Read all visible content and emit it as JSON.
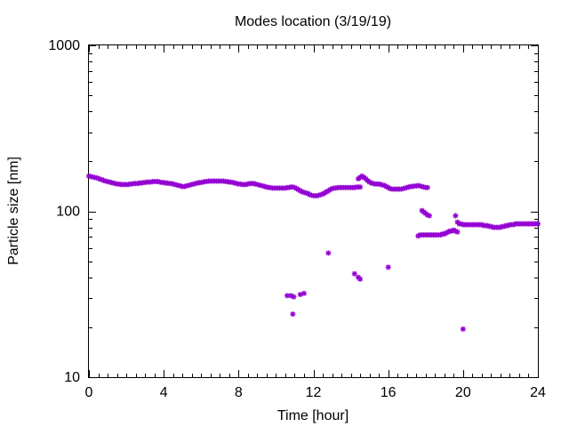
{
  "chart_data": {
    "type": "scatter",
    "title": "Modes location (3/19/19)",
    "xlabel": "Time [hour]",
    "ylabel": "Particle size [nm]",
    "xlim": [
      0,
      24
    ],
    "ylim": [
      10,
      1000
    ],
    "y_scale": "log",
    "grid": false,
    "legend": "none",
    "marker_color": "#9400d3",
    "x_ticks": [
      {
        "value": 0,
        "label": "0"
      },
      {
        "value": 4,
        "label": "4"
      },
      {
        "value": 8,
        "label": "8"
      },
      {
        "value": 12,
        "label": "12"
      },
      {
        "value": 16,
        "label": "16"
      },
      {
        "value": 20,
        "label": "20"
      },
      {
        "value": 24,
        "label": "24"
      }
    ],
    "y_ticks": [
      {
        "value": 10,
        "label": "10"
      },
      {
        "value": 100,
        "label": "100"
      },
      {
        "value": 1000,
        "label": "1000"
      }
    ],
    "series": [
      {
        "points": [
          [
            0.0,
            163
          ],
          [
            0.1,
            162
          ],
          [
            0.2,
            161
          ],
          [
            0.3,
            160
          ],
          [
            0.4,
            159
          ],
          [
            0.5,
            158
          ],
          [
            0.6,
            156
          ],
          [
            0.7,
            155
          ],
          [
            0.8,
            153
          ],
          [
            0.9,
            152
          ],
          [
            1.0,
            151
          ],
          [
            1.1,
            150
          ],
          [
            1.2,
            149
          ],
          [
            1.3,
            148
          ],
          [
            1.4,
            147
          ],
          [
            1.5,
            146
          ],
          [
            1.6,
            146
          ],
          [
            1.7,
            145
          ],
          [
            1.8,
            145
          ],
          [
            1.9,
            145
          ],
          [
            2.0,
            145
          ],
          [
            2.1,
            145
          ],
          [
            2.2,
            146
          ],
          [
            2.3,
            146
          ],
          [
            2.4,
            147
          ],
          [
            2.5,
            147
          ],
          [
            2.6,
            147
          ],
          [
            2.7,
            148
          ],
          [
            2.8,
            148
          ],
          [
            2.9,
            149
          ],
          [
            3.0,
            149
          ],
          [
            3.1,
            150
          ],
          [
            3.2,
            150
          ],
          [
            3.3,
            150
          ],
          [
            3.4,
            151
          ],
          [
            3.5,
            151
          ],
          [
            3.6,
            151
          ],
          [
            3.7,
            151
          ],
          [
            3.8,
            150
          ],
          [
            3.9,
            149
          ],
          [
            4.0,
            149
          ],
          [
            4.1,
            148
          ],
          [
            4.2,
            148
          ],
          [
            4.3,
            147
          ],
          [
            4.4,
            147
          ],
          [
            4.5,
            146
          ],
          [
            4.6,
            145
          ],
          [
            4.7,
            144
          ],
          [
            4.8,
            143
          ],
          [
            4.9,
            142
          ],
          [
            5.0,
            141
          ],
          [
            5.1,
            141
          ],
          [
            5.2,
            142
          ],
          [
            5.3,
            143
          ],
          [
            5.4,
            144
          ],
          [
            5.5,
            145
          ],
          [
            5.6,
            146
          ],
          [
            5.7,
            147
          ],
          [
            5.8,
            148
          ],
          [
            5.9,
            149
          ],
          [
            6.0,
            149
          ],
          [
            6.1,
            150
          ],
          [
            6.2,
            151
          ],
          [
            6.3,
            151
          ],
          [
            6.4,
            152
          ],
          [
            6.5,
            152
          ],
          [
            6.6,
            152
          ],
          [
            6.7,
            152
          ],
          [
            6.8,
            152
          ],
          [
            6.9,
            152
          ],
          [
            7.0,
            152
          ],
          [
            7.1,
            152
          ],
          [
            7.2,
            152
          ],
          [
            7.3,
            151
          ],
          [
            7.4,
            151
          ],
          [
            7.5,
            150
          ],
          [
            7.6,
            150
          ],
          [
            7.7,
            149
          ],
          [
            7.8,
            148
          ],
          [
            7.9,
            147
          ],
          [
            8.0,
            146
          ],
          [
            8.1,
            146
          ],
          [
            8.2,
            145
          ],
          [
            8.3,
            145
          ],
          [
            8.4,
            145
          ],
          [
            8.5,
            146
          ],
          [
            8.6,
            147
          ],
          [
            8.7,
            147
          ],
          [
            8.8,
            147
          ],
          [
            8.9,
            146
          ],
          [
            9.0,
            145
          ],
          [
            9.1,
            144
          ],
          [
            9.2,
            143
          ],
          [
            9.3,
            142
          ],
          [
            9.4,
            141
          ],
          [
            9.5,
            140
          ],
          [
            9.6,
            139
          ],
          [
            9.7,
            139
          ],
          [
            9.8,
            138
          ],
          [
            9.9,
            138
          ],
          [
            10.0,
            138
          ],
          [
            10.1,
            138
          ],
          [
            10.2,
            138
          ],
          [
            10.3,
            138
          ],
          [
            10.4,
            138
          ],
          [
            10.5,
            138
          ],
          [
            10.6,
            139
          ],
          [
            10.7,
            139
          ],
          [
            10.8,
            140
          ],
          [
            10.9,
            140
          ],
          [
            11.0,
            139
          ],
          [
            11.1,
            137
          ],
          [
            11.2,
            135
          ],
          [
            11.3,
            133
          ],
          [
            11.4,
            131
          ],
          [
            11.5,
            130
          ],
          [
            11.6,
            129
          ],
          [
            11.7,
            128
          ],
          [
            11.8,
            126
          ],
          [
            11.9,
            125
          ],
          [
            12.0,
            124
          ],
          [
            12.1,
            124
          ],
          [
            12.2,
            124
          ],
          [
            12.3,
            125
          ],
          [
            12.4,
            126
          ],
          [
            12.5,
            127
          ],
          [
            12.6,
            129
          ],
          [
            12.7,
            131
          ],
          [
            12.8,
            133
          ],
          [
            12.9,
            135
          ],
          [
            13.0,
            137
          ],
          [
            13.1,
            138
          ],
          [
            13.2,
            138
          ],
          [
            13.3,
            139
          ],
          [
            13.4,
            139
          ],
          [
            13.5,
            139
          ],
          [
            13.6,
            139
          ],
          [
            13.7,
            139
          ],
          [
            13.8,
            139
          ],
          [
            13.9,
            139
          ],
          [
            14.0,
            139
          ],
          [
            14.1,
            139
          ],
          [
            14.2,
            139
          ],
          [
            14.3,
            140
          ],
          [
            14.4,
            140
          ],
          [
            14.5,
            140
          ],
          [
            14.4,
            157
          ],
          [
            14.5,
            160
          ],
          [
            14.6,
            163
          ],
          [
            14.7,
            160
          ],
          [
            14.8,
            157
          ],
          [
            14.9,
            153
          ],
          [
            15.0,
            150
          ],
          [
            15.1,
            148
          ],
          [
            15.2,
            147
          ],
          [
            15.3,
            146
          ],
          [
            15.4,
            146
          ],
          [
            15.5,
            146
          ],
          [
            15.6,
            145
          ],
          [
            15.7,
            144
          ],
          [
            15.8,
            143
          ],
          [
            15.9,
            141
          ],
          [
            16.0,
            139
          ],
          [
            16.1,
            137
          ],
          [
            16.2,
            136
          ],
          [
            16.3,
            136
          ],
          [
            16.4,
            136
          ],
          [
            16.5,
            136
          ],
          [
            16.6,
            136
          ],
          [
            16.7,
            136
          ],
          [
            16.8,
            137
          ],
          [
            16.9,
            138
          ],
          [
            17.0,
            139
          ],
          [
            17.1,
            140
          ],
          [
            17.2,
            141
          ],
          [
            17.3,
            141
          ],
          [
            17.4,
            142
          ],
          [
            17.5,
            142
          ],
          [
            17.6,
            143
          ],
          [
            17.7,
            142
          ],
          [
            17.8,
            141
          ],
          [
            17.9,
            140
          ],
          [
            18.0,
            139
          ],
          [
            18.1,
            139
          ],
          [
            17.8,
            101
          ],
          [
            17.9,
            99
          ],
          [
            18.0,
            97
          ],
          [
            18.1,
            95
          ],
          [
            18.2,
            94
          ],
          [
            17.6,
            71
          ],
          [
            17.7,
            72
          ],
          [
            17.8,
            72
          ],
          [
            17.9,
            72
          ],
          [
            18.0,
            72
          ],
          [
            18.1,
            72
          ],
          [
            18.2,
            72
          ],
          [
            18.3,
            72
          ],
          [
            18.4,
            72
          ],
          [
            18.5,
            72
          ],
          [
            18.6,
            72
          ],
          [
            18.7,
            72
          ],
          [
            18.8,
            72
          ],
          [
            18.9,
            73
          ],
          [
            19.0,
            73
          ],
          [
            19.1,
            74
          ],
          [
            19.2,
            75
          ],
          [
            19.3,
            76
          ],
          [
            19.4,
            76
          ],
          [
            19.5,
            77
          ],
          [
            19.6,
            76
          ],
          [
            19.7,
            75
          ],
          [
            19.6,
            94
          ],
          [
            19.7,
            86
          ],
          [
            19.8,
            84
          ],
          [
            19.9,
            84
          ],
          [
            20.0,
            83
          ],
          [
            20.1,
            83
          ],
          [
            20.2,
            83
          ],
          [
            20.3,
            83
          ],
          [
            20.4,
            83
          ],
          [
            20.5,
            83
          ],
          [
            20.6,
            83
          ],
          [
            20.7,
            83
          ],
          [
            20.8,
            83
          ],
          [
            20.9,
            83
          ],
          [
            21.0,
            83
          ],
          [
            21.1,
            82
          ],
          [
            21.2,
            82
          ],
          [
            21.3,
            82
          ],
          [
            21.4,
            81
          ],
          [
            21.5,
            81
          ],
          [
            21.6,
            80
          ],
          [
            21.7,
            80
          ],
          [
            21.8,
            80
          ],
          [
            21.9,
            80
          ],
          [
            22.0,
            80
          ],
          [
            22.1,
            81
          ],
          [
            22.2,
            81
          ],
          [
            22.3,
            82
          ],
          [
            22.4,
            82
          ],
          [
            22.5,
            83
          ],
          [
            22.6,
            83
          ],
          [
            22.7,
            83
          ],
          [
            22.8,
            84
          ],
          [
            22.9,
            84
          ],
          [
            23.0,
            84
          ],
          [
            23.1,
            84
          ],
          [
            23.2,
            84
          ],
          [
            23.3,
            84
          ],
          [
            23.4,
            84
          ],
          [
            23.5,
            84
          ],
          [
            23.6,
            84
          ],
          [
            23.7,
            84
          ],
          [
            23.8,
            84
          ],
          [
            23.9,
            84
          ],
          [
            24.0,
            84
          ],
          [
            10.6,
            31
          ],
          [
            10.8,
            31
          ],
          [
            10.95,
            30.5
          ],
          [
            10.9,
            24
          ],
          [
            11.3,
            31.5
          ],
          [
            11.5,
            32
          ],
          [
            12.8,
            56
          ],
          [
            14.2,
            42
          ],
          [
            14.4,
            40
          ],
          [
            14.5,
            39
          ],
          [
            16.0,
            46
          ],
          [
            20.0,
            19.5
          ]
        ]
      }
    ]
  }
}
